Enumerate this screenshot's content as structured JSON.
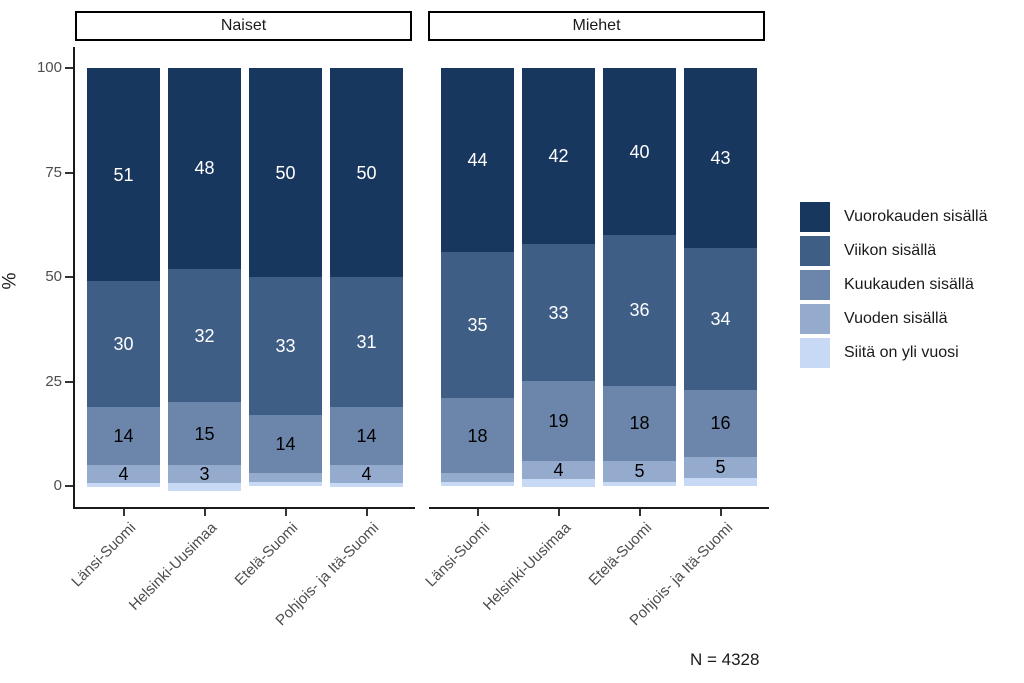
{
  "chart_data": {
    "type": "bar",
    "stacked": true,
    "percent": true,
    "ylabel": "%",
    "ylim": [
      0,
      100
    ],
    "yticks": [
      0,
      25,
      50,
      75,
      100
    ],
    "grid": false,
    "legend_position": "right",
    "note": "N = 4328",
    "series": [
      "Vuorokauden sisällä",
      "Viikon sisällä",
      "Kuukauden sisällä",
      "Vuoden sisällä",
      "Siitä on yli vuosi"
    ],
    "colors": [
      "#17375e",
      "#3f5e86",
      "#6c86ab",
      "#95abce",
      "#c7d9f5"
    ],
    "label_text_colors": [
      "#ffffff",
      "#ffffff",
      "#000000",
      "#000000",
      "#000000"
    ],
    "facets": [
      {
        "title": "Naiset",
        "categories": [
          "Länsi-Suomi",
          "Helsinki-Uusimaa",
          "Etelä-Suomi",
          "Pohjois- ja Itä-Suomi"
        ],
        "bars": [
          {
            "category": "Länsi-Suomi",
            "values": [
              51,
              30,
              14,
              4,
              1
            ],
            "labels": [
              "51",
              "30",
              "14",
              "4",
              ""
            ]
          },
          {
            "category": "Helsinki-Uusimaa",
            "values": [
              48,
              32,
              15,
              3,
              2
            ],
            "labels": [
              "48",
              "32",
              "15",
              "3",
              ""
            ]
          },
          {
            "category": "Etelä-Suomi",
            "values": [
              50,
              33,
              14,
              2,
              1
            ],
            "labels": [
              "50",
              "33",
              "14",
              "",
              ""
            ]
          },
          {
            "category": "Pohjois- ja Itä-Suomi",
            "values": [
              50,
              31,
              14,
              4,
              1
            ],
            "labels": [
              "50",
              "31",
              "14",
              "4",
              ""
            ]
          }
        ]
      },
      {
        "title": "Miehet",
        "categories": [
          "Länsi-Suomi",
          "Helsinki-Uusimaa",
          "Etelä-Suomi",
          "Pohjois- ja Itä-Suomi"
        ],
        "bars": [
          {
            "category": "Länsi-Suomi",
            "values": [
              44,
              35,
              18,
              2,
              1
            ],
            "labels": [
              "44",
              "35",
              "18",
              "",
              ""
            ]
          },
          {
            "category": "Helsinki-Uusimaa",
            "values": [
              42,
              33,
              19,
              4,
              2
            ],
            "labels": [
              "42",
              "33",
              "19",
              "4",
              ""
            ]
          },
          {
            "category": "Etelä-Suomi",
            "values": [
              40,
              36,
              18,
              5,
              1
            ],
            "labels": [
              "40",
              "36",
              "18",
              "5",
              ""
            ]
          },
          {
            "category": "Pohjois- ja Itä-Suomi",
            "values": [
              43,
              34,
              16,
              5,
              2
            ],
            "labels": [
              "43",
              "34",
              "16",
              "5",
              ""
            ]
          }
        ]
      }
    ]
  }
}
